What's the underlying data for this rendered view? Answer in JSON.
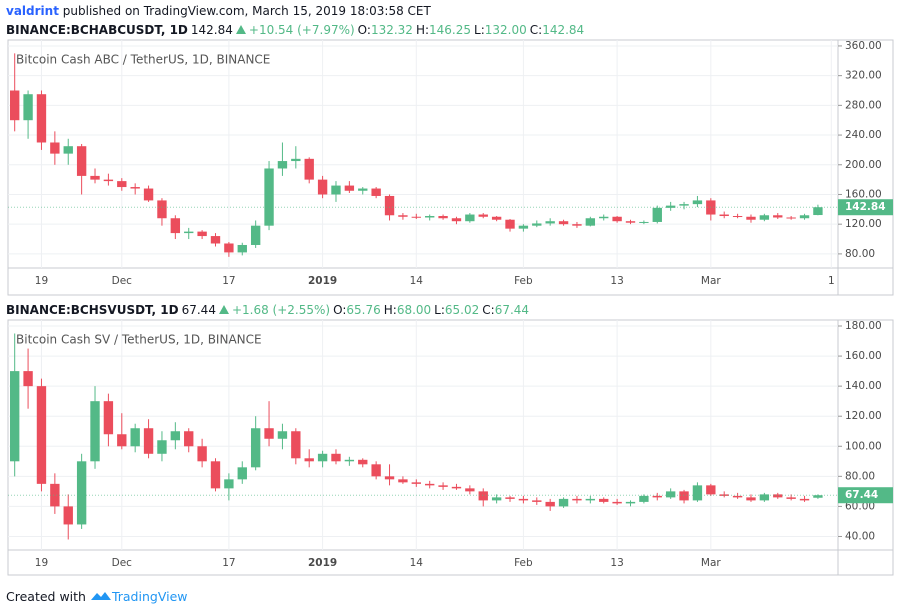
{
  "header": {
    "author": "valdrint",
    "published": "published on TradingView.com, March 15, 2019 18:03:58 CET"
  },
  "chart_data": [
    {
      "type": "candlestick",
      "title": "Bitcoin Cash ABC / TetherUS, 1D, BINANCE",
      "legend": {
        "symbol": "BINANCE:BCHABCUSDT, 1D",
        "last": "142.84",
        "change": "+10.54 (+7.97%)",
        "ohlc": [
          {
            "label": "O:",
            "value": "132.32"
          },
          {
            "label": "H:",
            "value": "146.25"
          },
          {
            "label": "L:",
            "value": "132.00"
          },
          {
            "label": "C:",
            "value": "142.84"
          }
        ]
      },
      "categories": [
        null,
        null,
        "19",
        null,
        null,
        null,
        null,
        null,
        "Dec",
        null,
        null,
        null,
        null,
        null,
        null,
        null,
        "17",
        null,
        null,
        null,
        null,
        null,
        null,
        "2019",
        null,
        null,
        null,
        null,
        null,
        null,
        "14",
        null,
        null,
        null,
        null,
        null,
        null,
        null,
        "Feb",
        null,
        null,
        null,
        null,
        null,
        null,
        "13",
        null,
        null,
        null,
        null,
        null,
        null,
        "Mar",
        null,
        null,
        null,
        null,
        null,
        null,
        null,
        null,
        "1"
      ],
      "open": [
        300,
        260,
        295,
        230,
        215,
        225,
        185,
        180,
        178,
        170,
        168,
        152,
        128,
        108,
        110,
        104,
        94,
        82,
        92,
        118,
        195,
        205,
        208,
        180,
        160,
        172,
        165,
        168,
        158,
        132,
        130,
        129,
        131,
        128,
        124,
        133,
        130,
        126,
        114,
        118,
        121,
        124,
        120,
        118,
        128,
        130,
        124,
        122,
        123,
        142,
        145,
        147,
        152,
        133,
        131,
        130,
        126,
        132,
        129,
        128,
        132.32,
        null
      ],
      "high": [
        350,
        300,
        300,
        245,
        235,
        228,
        195,
        188,
        182,
        175,
        172,
        155,
        132,
        115,
        112,
        108,
        96,
        95,
        125,
        205,
        230,
        225,
        210,
        185,
        178,
        178,
        170,
        170,
        160,
        135,
        134,
        133,
        133,
        130,
        135,
        135,
        131,
        127,
        120,
        125,
        128,
        126,
        123,
        130,
        133,
        131,
        126,
        125,
        145,
        150,
        150,
        158,
        155,
        137,
        134,
        133,
        134,
        135,
        131,
        134,
        146.25,
        null
      ],
      "low": [
        245,
        235,
        220,
        200,
        200,
        160,
        175,
        172,
        165,
        160,
        150,
        118,
        100,
        100,
        100,
        90,
        76,
        78,
        88,
        112,
        185,
        195,
        175,
        155,
        150,
        162,
        160,
        155,
        125,
        126,
        127,
        125,
        126,
        120,
        122,
        128,
        124,
        110,
        110,
        116,
        118,
        118,
        115,
        117,
        125,
        122,
        120,
        120,
        121,
        138,
        140,
        143,
        125,
        128,
        128,
        122,
        124,
        127,
        126,
        126,
        132,
        null
      ],
      "close": [
        260,
        295,
        230,
        215,
        225,
        185,
        180,
        178,
        170,
        168,
        152,
        128,
        108,
        110,
        104,
        94,
        82,
        92,
        118,
        195,
        205,
        208,
        180,
        160,
        172,
        165,
        168,
        158,
        132,
        130,
        129,
        131,
        128,
        124,
        133,
        130,
        126,
        114,
        118,
        121,
        124,
        120,
        118,
        128,
        130,
        124,
        122,
        123,
        142,
        145,
        147,
        152,
        133,
        131,
        130,
        126,
        132,
        129,
        128,
        132,
        142.84,
        null
      ],
      "ylim": [
        61,
        368
      ],
      "yticks": [
        {
          "value": 80,
          "label": "80.00"
        },
        {
          "value": 120,
          "label": "120.00"
        },
        {
          "value": 160,
          "label": "160.00"
        },
        {
          "value": 200,
          "label": "200.00"
        },
        {
          "value": 240,
          "label": "240.00"
        },
        {
          "value": 280,
          "label": "280.00"
        },
        {
          "value": 320,
          "label": "320.00"
        },
        {
          "value": 360,
          "label": "360.00"
        }
      ],
      "grid": true,
      "up_color": "#53b987",
      "down_color": "#eb4d5c"
    },
    {
      "type": "candlestick",
      "title": "Bitcoin Cash SV / TetherUS, 1D, BINANCE",
      "legend": {
        "symbol": "BINANCE:BCHSVUSDT, 1D",
        "last": "67.44",
        "change": "+1.68 (+2.55%)",
        "ohlc": [
          {
            "label": "O:",
            "value": "65.76"
          },
          {
            "label": "H:",
            "value": "68.00"
          },
          {
            "label": "L:",
            "value": "65.02"
          },
          {
            "label": "C:",
            "value": "67.44"
          }
        ]
      },
      "categories": [
        null,
        null,
        "19",
        null,
        null,
        null,
        null,
        null,
        "Dec",
        null,
        null,
        null,
        null,
        null,
        null,
        null,
        "17",
        null,
        null,
        null,
        null,
        null,
        null,
        "2019",
        null,
        null,
        null,
        null,
        null,
        null,
        "14",
        null,
        null,
        null,
        null,
        null,
        null,
        null,
        "Feb",
        null,
        null,
        null,
        null,
        null,
        null,
        "13",
        null,
        null,
        null,
        null,
        null,
        null,
        "Mar",
        null,
        null,
        null,
        null,
        null,
        null,
        null,
        null,
        null
      ],
      "open": [
        90,
        150,
        140,
        75,
        60,
        48,
        90,
        130,
        108,
        100,
        112,
        95,
        104,
        110,
        100,
        90,
        72,
        78,
        86,
        112,
        105,
        110,
        92,
        90,
        95,
        90,
        91,
        88,
        80,
        78,
        76,
        75,
        74,
        73,
        72,
        70,
        64,
        66,
        65,
        64,
        63,
        60,
        65,
        64,
        65,
        63,
        62,
        63,
        67,
        66,
        70,
        64,
        74,
        68,
        67,
        66,
        64,
        68,
        66,
        65,
        65.76,
        null
      ],
      "high": [
        175,
        165,
        145,
        82,
        68,
        95,
        140,
        135,
        122,
        115,
        118,
        110,
        116,
        112,
        105,
        92,
        82,
        90,
        120,
        130,
        115,
        112,
        98,
        97,
        98,
        93,
        92,
        90,
        88,
        80,
        78,
        77,
        76,
        75,
        74,
        72,
        68,
        67,
        67,
        66,
        65,
        66,
        67,
        67,
        66,
        65,
        64,
        68,
        69,
        72,
        71,
        76,
        75,
        70,
        69,
        68,
        69,
        69,
        68,
        67,
        68,
        null
      ],
      "low": [
        80,
        125,
        70,
        55,
        38,
        45,
        85,
        100,
        98,
        96,
        92,
        90,
        98,
        96,
        86,
        70,
        64,
        75,
        84,
        100,
        98,
        88,
        86,
        86,
        88,
        87,
        86,
        78,
        74,
        75,
        73,
        72,
        71,
        71,
        68,
        60,
        62,
        63,
        62,
        61,
        57,
        59,
        62,
        62,
        62,
        61,
        60,
        62,
        64,
        65,
        62,
        63,
        67,
        66,
        65,
        63,
        63,
        65,
        64,
        63,
        65.02,
        null
      ],
      "close": [
        150,
        140,
        75,
        60,
        48,
        90,
        130,
        108,
        100,
        112,
        95,
        104,
        110,
        100,
        90,
        72,
        78,
        86,
        112,
        105,
        110,
        92,
        90,
        95,
        90,
        91,
        88,
        80,
        78,
        76,
        75,
        74,
        73,
        72,
        70,
        64,
        66,
        65,
        64,
        63,
        60,
        65,
        64,
        65,
        63,
        62,
        63,
        67,
        66,
        70,
        64,
        74,
        68,
        67,
        66,
        64,
        68,
        66,
        65,
        64,
        67.44,
        null
      ],
      "ylim": [
        31,
        184
      ],
      "yticks": [
        {
          "value": 40,
          "label": "40.00"
        },
        {
          "value": 60,
          "label": "60.00"
        },
        {
          "value": 80,
          "label": "80.00"
        },
        {
          "value": 100,
          "label": "100.00"
        },
        {
          "value": 120,
          "label": "120.00"
        },
        {
          "value": 140,
          "label": "140.00"
        },
        {
          "value": 160,
          "label": "160.00"
        },
        {
          "value": 180,
          "label": "180.00"
        }
      ],
      "grid": true,
      "up_color": "#53b987",
      "down_color": "#eb4d5c"
    }
  ],
  "footer": {
    "text": "Created with",
    "brand": "TradingView"
  }
}
